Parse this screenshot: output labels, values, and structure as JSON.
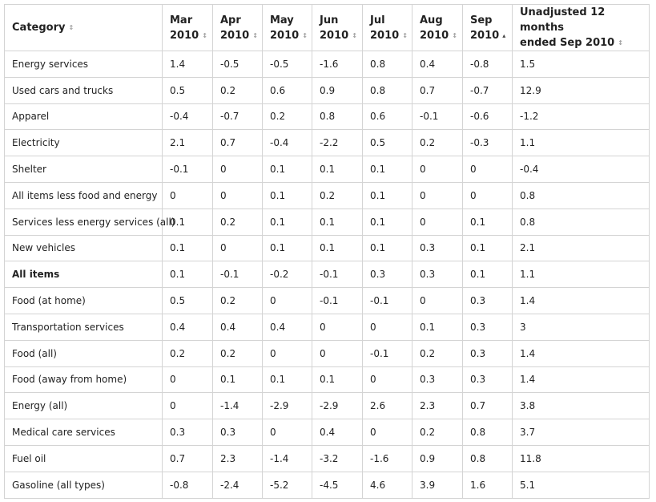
{
  "table": {
    "headers": [
      {
        "lines": [
          "Category"
        ],
        "sort": "both"
      },
      {
        "lines": [
          "Mar",
          "2010"
        ],
        "sort": "both"
      },
      {
        "lines": [
          "Apr",
          "2010"
        ],
        "sort": "both"
      },
      {
        "lines": [
          "May",
          "2010"
        ],
        "sort": "both"
      },
      {
        "lines": [
          "Jun",
          "2010"
        ],
        "sort": "both"
      },
      {
        "lines": [
          "Jul",
          "2010"
        ],
        "sort": "both"
      },
      {
        "lines": [
          "Aug",
          "2010"
        ],
        "sort": "both"
      },
      {
        "lines": [
          "Sep",
          "2010"
        ],
        "sort": "ascending"
      },
      {
        "lines": [
          "Unadjusted 12 months",
          "ended Sep 2010"
        ],
        "sort": "both"
      }
    ],
    "rows": [
      {
        "cells": [
          "Energy services",
          "1.4",
          "-0.5",
          "-0.5",
          "-1.6",
          "0.8",
          "0.4",
          "-0.8",
          "1.5"
        ]
      },
      {
        "cells": [
          "Used cars and trucks",
          "0.5",
          "0.2",
          "0.6",
          "0.9",
          "0.8",
          "0.7",
          "-0.7",
          "12.9"
        ]
      },
      {
        "cells": [
          "Apparel",
          "-0.4",
          "-0.7",
          "0.2",
          "0.8",
          "0.6",
          "-0.1",
          "-0.6",
          "-1.2"
        ]
      },
      {
        "cells": [
          "Electricity",
          "2.1",
          "0.7",
          "-0.4",
          "-2.2",
          "0.5",
          "0.2",
          "-0.3",
          "1.1"
        ]
      },
      {
        "cells": [
          "Shelter",
          "-0.1",
          "0",
          "0.1",
          "0.1",
          "0.1",
          "0",
          "0",
          "-0.4"
        ]
      },
      {
        "cells": [
          "All items less food and energy",
          "0",
          "0",
          "0.1",
          "0.2",
          "0.1",
          "0",
          "0",
          "0.8"
        ]
      },
      {
        "cells": [
          "Services less energy services (all)",
          "0.1",
          "0.2",
          "0.1",
          "0.1",
          "0.1",
          "0",
          "0.1",
          "0.8"
        ]
      },
      {
        "cells": [
          "New vehicles",
          "0.1",
          "0",
          "0.1",
          "0.1",
          "0.1",
          "0.3",
          "0.1",
          "2.1"
        ]
      },
      {
        "cells": [
          "All items",
          "0.1",
          "-0.1",
          "-0.2",
          "-0.1",
          "0.3",
          "0.3",
          "0.1",
          "1.1"
        ],
        "bold": true
      },
      {
        "cells": [
          "Food (at home)",
          "0.5",
          "0.2",
          "0",
          "-0.1",
          "-0.1",
          "0",
          "0.3",
          "1.4"
        ]
      },
      {
        "cells": [
          "Transportation services",
          "0.4",
          "0.4",
          "0.4",
          "0",
          "0",
          "0.1",
          "0.3",
          "3"
        ]
      },
      {
        "cells": [
          "Food (all)",
          "0.2",
          "0.2",
          "0",
          "0",
          "-0.1",
          "0.2",
          "0.3",
          "1.4"
        ]
      },
      {
        "cells": [
          "Food (away from home)",
          "0",
          "0.1",
          "0.1",
          "0.1",
          "0",
          "0.3",
          "0.3",
          "1.4"
        ]
      },
      {
        "cells": [
          "Energy (all)",
          "0",
          "-1.4",
          "-2.9",
          "-2.9",
          "2.6",
          "2.3",
          "0.7",
          "3.8"
        ]
      },
      {
        "cells": [
          "Medical care services",
          "0.3",
          "0.3",
          "0",
          "0.4",
          "0",
          "0.2",
          "0.8",
          "3.7"
        ]
      },
      {
        "cells": [
          "Fuel oil",
          "0.7",
          "2.3",
          "-1.4",
          "-3.2",
          "-1.6",
          "0.9",
          "0.8",
          "11.8"
        ]
      },
      {
        "cells": [
          "Gasoline (all types)",
          "-0.8",
          "-2.4",
          "-5.2",
          "-4.5",
          "4.6",
          "3.9",
          "1.6",
          "5.1"
        ]
      }
    ]
  },
  "icons": {
    "sort_both": "sort-both-icon",
    "sort_ascending": "sort-ascending-icon"
  },
  "colors": {
    "border": "#d4d4d4",
    "text": "#222222"
  }
}
